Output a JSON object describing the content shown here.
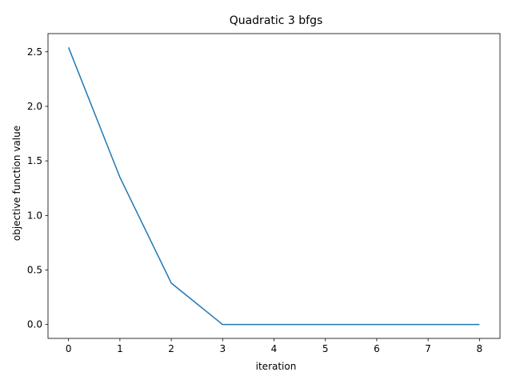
{
  "chart_data": {
    "type": "line",
    "title": "Quadratic 3 bfgs",
    "xlabel": "iteration",
    "ylabel": "objective function value",
    "x": [
      0,
      1,
      2,
      3,
      4,
      5,
      6,
      7,
      8
    ],
    "series": [
      {
        "values": [
          2.54,
          1.35,
          0.38,
          0.0,
          0.0,
          0.0,
          0.0,
          0.0,
          0.0
        ],
        "color": "#1f77b4"
      }
    ],
    "xlim": [
      -0.4,
      8.4
    ],
    "ylim": [
      -0.127,
      2.667
    ],
    "xticks": [
      0,
      1,
      2,
      3,
      4,
      5,
      6,
      7,
      8
    ],
    "yticks": [
      0.0,
      0.5,
      1.0,
      1.5,
      2.0,
      2.5
    ],
    "xtick_labels": [
      "0",
      "1",
      "2",
      "3",
      "4",
      "5",
      "6",
      "7",
      "8"
    ],
    "ytick_labels": [
      "0.0",
      "0.5",
      "1.0",
      "1.5",
      "2.0",
      "2.5"
    ],
    "grid": false,
    "legend": "none"
  }
}
